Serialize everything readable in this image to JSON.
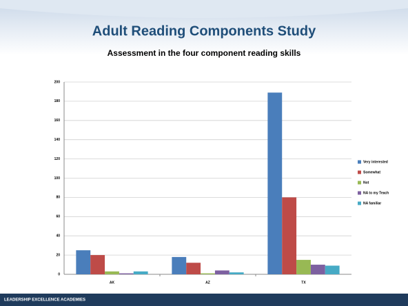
{
  "chart_data": {
    "type": "bar",
    "title": "Adult Reading Components Study",
    "subtitle": "Assessment in the four component reading skills",
    "categories": [
      "AK",
      "AZ",
      "TX"
    ],
    "series": [
      {
        "name": "Very interested",
        "color": "#4a7ebb",
        "values": [
          25,
          18,
          189
        ]
      },
      {
        "name": "Somewhat",
        "color": "#be4b48",
        "values": [
          20,
          12,
          80
        ]
      },
      {
        "name": "Not",
        "color": "#98b954",
        "values": [
          3,
          1,
          15
        ]
      },
      {
        "name": "NA to my Teach",
        "color": "#7d60a0",
        "values": [
          1,
          4,
          10
        ]
      },
      {
        "name": "NA familiar",
        "color": "#46aac5",
        "values": [
          3,
          2,
          9
        ]
      }
    ],
    "ylim": [
      0,
      200
    ],
    "yticks": [
      0,
      20,
      40,
      60,
      80,
      100,
      120,
      140,
      160,
      180,
      200
    ],
    "grid": true,
    "legend": "right"
  },
  "footer": "LEADERSHIP EXCELLENCE ACADEMIES"
}
